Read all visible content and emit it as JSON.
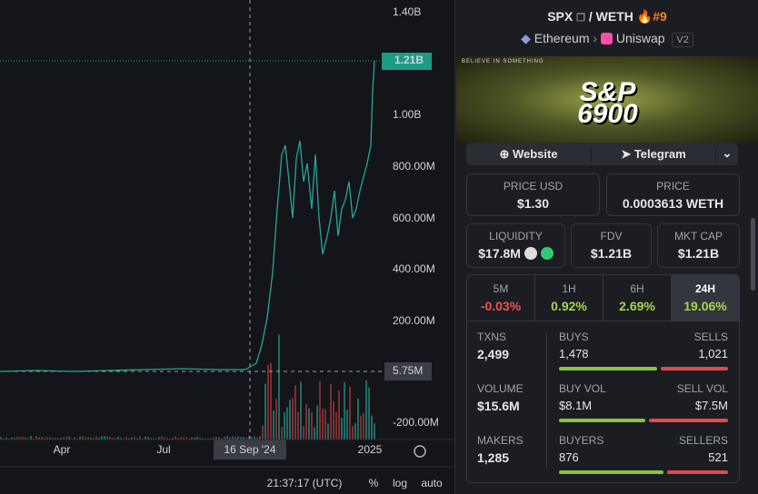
{
  "chart": {
    "price_axis": [
      "1.40B",
      "1.21B",
      "1.00B",
      "800.00M",
      "600.00M",
      "400.00M",
      "200.00M",
      "5.75M",
      "-200.00M"
    ],
    "time_axis": [
      "Apr",
      "Jul",
      "16 Sep '24",
      "2025"
    ],
    "footer": {
      "time": "21:37:17 (UTC)",
      "options": [
        "%",
        "log",
        "auto"
      ]
    }
  },
  "pair": {
    "base": "SPX",
    "separator": "/",
    "quote": "WETH",
    "rank": "#9",
    "chain": "Ethereum",
    "dex": "Uniswap",
    "version": "V2"
  },
  "banner": {
    "tagline": "BELIEVE IN SOMETHING",
    "logo_top": "S&P",
    "logo_bottom": "6900"
  },
  "links": [
    "Website",
    "Telegram"
  ],
  "prices": [
    {
      "label": "PRICE USD",
      "value": "$1.30"
    },
    {
      "label": "PRICE",
      "value": "0.0003613 WETH"
    }
  ],
  "stats": [
    {
      "label": "LIQUIDITY",
      "value": "$17.8M"
    },
    {
      "label": "FDV",
      "value": "$1.21B"
    },
    {
      "label": "MKT CAP",
      "value": "$1.21B"
    }
  ],
  "timeframes": [
    {
      "label": "5M",
      "change": "-0.03%"
    },
    {
      "label": "1H",
      "change": "0.92%"
    },
    {
      "label": "6H",
      "change": "2.69%"
    },
    {
      "label": "24H",
      "change": "19.06%"
    }
  ],
  "activity": [
    {
      "total": {
        "label": "TXNS",
        "value": "2,499"
      },
      "buy": {
        "label": "BUYS",
        "value": "1,478"
      },
      "sell": {
        "label": "SELLS",
        "value": "1,021"
      }
    },
    {
      "total": {
        "label": "VOLUME",
        "value": "$15.6M"
      },
      "buy": {
        "label": "BUY VOL",
        "value": "$8.1M"
      },
      "sell": {
        "label": "SELL VOL",
        "value": "$7.5M"
      }
    },
    {
      "total": {
        "label": "MAKERS",
        "value": "1,285"
      },
      "buy": {
        "label": "BUYERS",
        "value": "876"
      },
      "sell": {
        "label": "SELLERS",
        "value": "521"
      }
    }
  ]
}
